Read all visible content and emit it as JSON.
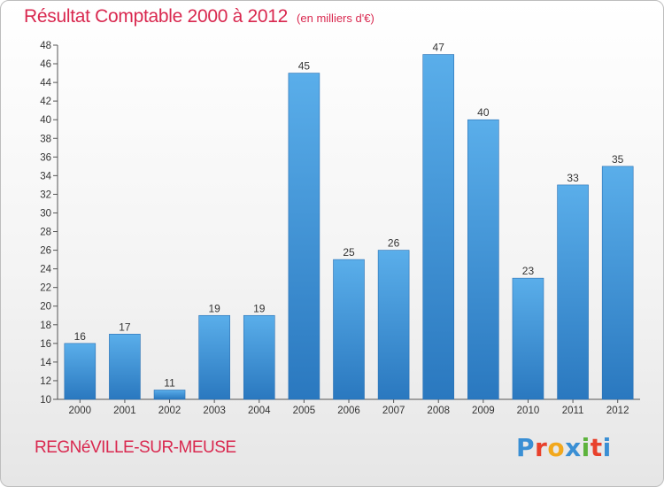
{
  "header": {
    "title": "Résultat Comptable 2000 à 2012",
    "unit": "(en milliers d'€)"
  },
  "footer": {
    "commune": "REGNéVILLE-SUR-MEUSE",
    "logo": "Proxiti",
    "logo_colors": [
      "#3a8fd4",
      "#e8412c",
      "#f2a81d",
      "#3a8fd4",
      "#5db33c",
      "#e8412c",
      "#3a8fd4"
    ]
  },
  "chart_data": {
    "type": "bar",
    "title": "Résultat Comptable 2000 à 2012",
    "subtitle": "(en milliers d'€)",
    "xlabel": "",
    "ylabel": "",
    "categories": [
      "2000",
      "2001",
      "2002",
      "2003",
      "2004",
      "2005",
      "2006",
      "2007",
      "2008",
      "2009",
      "2010",
      "2011",
      "2012"
    ],
    "values": [
      16,
      17,
      11,
      19,
      19,
      45,
      25,
      26,
      47,
      40,
      23,
      33,
      35
    ],
    "ylim": [
      10,
      48
    ],
    "yticks": [
      10,
      12,
      14,
      16,
      18,
      20,
      22,
      24,
      26,
      28,
      30,
      32,
      34,
      36,
      38,
      40,
      42,
      44,
      46,
      48
    ],
    "grid": false,
    "bar_color": "#4a9ee0",
    "bar_color_dark": "#2f7fc4"
  }
}
